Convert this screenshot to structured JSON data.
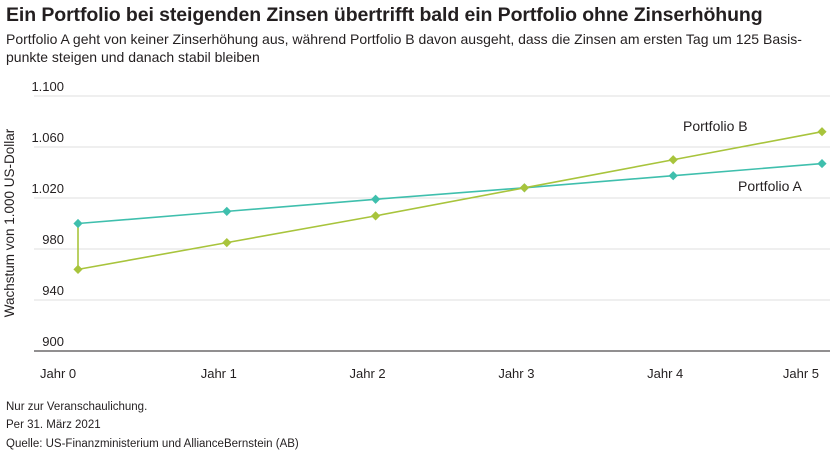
{
  "header": {
    "title": "Ein Portfolio bei steigenden Zinsen übertrifft bald ein Portfolio ohne Zinserhöhung",
    "subtitle": "Portfolio A geht von keiner Zinserhöhung aus, während Portfolio B davon ausgeht, dass die Zinsen am ersten Tag um 125 Basis­punkte steigen und danach stabil bleiben"
  },
  "chart_data": {
    "type": "line",
    "title": "Ein Portfolio bei steigenden Zinsen übertrifft bald ein Portfolio ohne Zinserhöhung",
    "xlabel": "",
    "ylabel": "Wachstum von 1.000 US-Dollar",
    "categories": [
      "Jahr 0",
      "Jahr 1",
      "Jahr 2",
      "Jahr 3",
      "Jahr 4",
      "Jahr 5"
    ],
    "ylim": [
      900,
      1100
    ],
    "yticks": [
      900,
      940,
      980,
      1020,
      1060,
      1100
    ],
    "ytick_labels": [
      "900",
      "940",
      "980",
      "1.020",
      "1.060",
      "1.100"
    ],
    "grid": true,
    "series": [
      {
        "name": "Portfolio A",
        "color": "#3fbfad",
        "values": [
          1000,
          1009.5,
          1019,
          1028,
          1037.5,
          1047
        ]
      },
      {
        "name": "Portfolio B",
        "color": "#a8c43c",
        "values": [
          964,
          985,
          1006,
          1028,
          1050,
          1072
        ]
      }
    ]
  },
  "footer": {
    "note": "Nur zur Veranschaulichung.",
    "date": "Per 31. März 2021",
    "source": "Quelle: US-Finanzministerium und AllianceBernstein (AB)"
  }
}
